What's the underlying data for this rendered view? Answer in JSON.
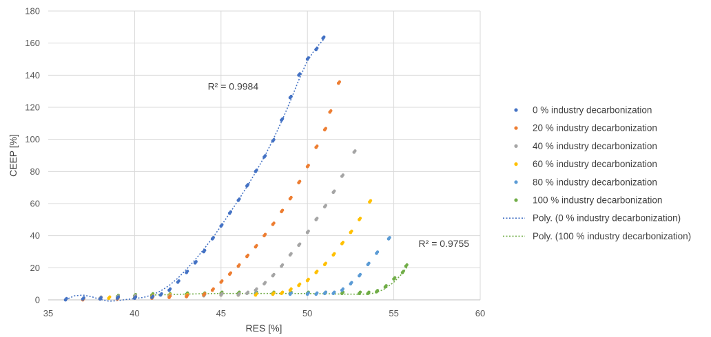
{
  "chart_data": {
    "type": "scatter",
    "xlabel": "RES [%]",
    "ylabel": "CEEP [%]",
    "xlim": [
      35,
      60
    ],
    "ylim": [
      0,
      180
    ],
    "x_ticks": [
      35,
      40,
      45,
      50,
      55,
      60
    ],
    "y_ticks": [
      0,
      20,
      40,
      60,
      80,
      100,
      120,
      140,
      160,
      180
    ],
    "grid": true,
    "legend_position": "right",
    "series": [
      {
        "name": "0 % industry decarbonization",
        "color": "#4472C4",
        "x": [
          36,
          37,
          38,
          39,
          40,
          41,
          41.5,
          42,
          42.5,
          43,
          43.5,
          44,
          44.5,
          45,
          45.5,
          46,
          46.5,
          47,
          47.5,
          48,
          48.5,
          49,
          49.5,
          50,
          50.5,
          50.9
        ],
        "y": [
          0,
          0.5,
          0.5,
          1,
          1,
          1.5,
          3,
          6,
          11,
          17,
          23,
          30,
          38,
          46,
          54,
          62,
          71,
          80,
          89,
          99,
          112,
          126,
          140,
          150,
          156,
          163
        ]
      },
      {
        "name": "20 % industry decarbonization",
        "color": "#ED7D31",
        "x": [
          37,
          38,
          39,
          40,
          41,
          42,
          43,
          44,
          44.5,
          45,
          45.5,
          46,
          46.5,
          47,
          47.5,
          48,
          48.5,
          49,
          49.5,
          50,
          50.5,
          51,
          51.3,
          51.8
        ],
        "y": [
          0,
          0.5,
          0.5,
          1,
          1,
          1.5,
          2,
          3,
          6,
          11,
          16,
          21,
          27,
          33,
          40,
          47,
          55,
          63,
          73,
          83,
          95,
          106,
          117,
          135
        ]
      },
      {
        "name": "40 % industry decarbonization",
        "color": "#A5A5A5",
        "x": [
          38,
          39,
          40,
          41,
          42,
          43,
          44,
          45,
          46,
          46.5,
          47,
          47.5,
          48,
          48.5,
          49,
          49.5,
          50,
          50.5,
          51,
          51.5,
          52,
          52.7
        ],
        "y": [
          1,
          1.5,
          2,
          1.5,
          2,
          2,
          2.5,
          3,
          3,
          4,
          6,
          10,
          15,
          21,
          28,
          34,
          42,
          50,
          58,
          67,
          77,
          92
        ]
      },
      {
        "name": "60 % industry decarbonization",
        "color": "#FFC000",
        "x": [
          38.5,
          40,
          41,
          42,
          43,
          44,
          45,
          46,
          47,
          48,
          48.5,
          49,
          49.5,
          50,
          50.5,
          51,
          51.5,
          52,
          52.5,
          53,
          53.6
        ],
        "y": [
          1,
          1.5,
          2,
          2.5,
          2.5,
          3,
          3,
          3,
          3,
          3.5,
          4,
          6,
          9,
          12,
          17,
          22,
          28,
          35,
          42,
          50,
          61
        ]
      },
      {
        "name": "80 % industry decarbonization",
        "color": "#5B9BD5",
        "x": [
          40,
          41,
          42,
          43,
          44,
          45,
          46,
          47,
          48,
          49,
          50,
          50.5,
          51,
          51.5,
          52,
          52.5,
          53,
          53.5,
          54,
          54.7
        ],
        "y": [
          1.5,
          2,
          2.5,
          2.5,
          3,
          3,
          3,
          3.5,
          3.5,
          3.5,
          3.5,
          3.5,
          4,
          4,
          6,
          10,
          15,
          22,
          29,
          38
        ]
      },
      {
        "name": "100 % industry decarbonization",
        "color": "#70AD47",
        "x": [
          39,
          40,
          41,
          42,
          43,
          44,
          45,
          46,
          47,
          48,
          49,
          50,
          51,
          52,
          53,
          53.5,
          54,
          54.5,
          55,
          55.5,
          55.7
        ],
        "y": [
          2,
          2.5,
          3,
          3,
          3.5,
          3.5,
          4,
          4,
          4,
          4,
          4,
          4,
          4,
          4,
          4,
          4,
          5,
          8,
          13,
          17,
          21
        ]
      }
    ],
    "trendlines": [
      {
        "name": "Poly. (0 % industry decarbonization)",
        "color": "#4472C4",
        "x": [
          36,
          36.5,
          37,
          37.5,
          38,
          38.5,
          39,
          39.5,
          40,
          40.5,
          41,
          41.5,
          42,
          42.5,
          43,
          43.5,
          44,
          44.5,
          45,
          45.5,
          46,
          46.5,
          47,
          47.5,
          48,
          48.5,
          49,
          49.5,
          50,
          50.5,
          51
        ],
        "y": [
          0,
          2.5,
          3,
          2,
          0.3,
          -0.8,
          -0.5,
          0.2,
          0.8,
          1.5,
          3,
          5.5,
          9,
          13.5,
          19,
          25,
          31.5,
          38.5,
          46,
          54,
          62,
          70.5,
          79.5,
          89,
          99.5,
          111,
          123.5,
          137,
          149,
          157,
          163
        ]
      },
      {
        "name": "Poly. (100 % industry decarbonization)",
        "color": "#70AD47",
        "x": [
          41,
          42,
          43,
          44,
          45,
          46,
          47,
          48,
          49,
          50,
          51,
          52,
          53,
          53.5,
          54,
          54.5,
          55,
          55.5,
          55.8
        ],
        "y": [
          3,
          3.3,
          3.6,
          3.8,
          4,
          4,
          4,
          4,
          4,
          3.9,
          3.8,
          3.6,
          3.5,
          3.6,
          4.5,
          7,
          11,
          16.5,
          21
        ]
      }
    ],
    "annotations": [
      {
        "text": "R² = 0.9984",
        "x": 45.7,
        "y": 131
      },
      {
        "text": "R² = 0.9755",
        "x": 57.9,
        "y": 33
      }
    ]
  }
}
